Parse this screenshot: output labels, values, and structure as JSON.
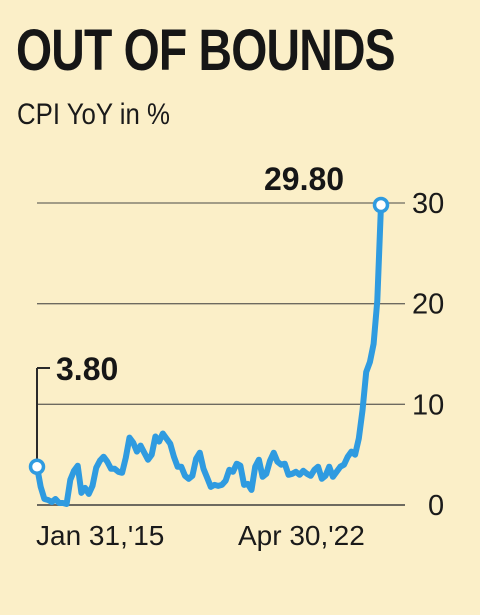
{
  "header": {
    "title": "OUT OF BOUNDS",
    "subtitle": "CPI YoY in %"
  },
  "colors": {
    "background": "#fbefc8",
    "line": "#2f9be0",
    "gridline": "#6d6a60",
    "text": "#1a1a1a"
  },
  "chart_data": {
    "type": "line",
    "title": "OUT OF BOUNDS",
    "subtitle": "CPI YoY in %",
    "xlabel": "",
    "ylabel": "",
    "ylim": [
      0,
      30
    ],
    "yticks": [
      0,
      10,
      20,
      30
    ],
    "x_start_label": "Jan 31,'15",
    "x_end_label": "Apr 30,'22",
    "grid": "horizontal",
    "series": [
      {
        "name": "",
        "color": "#2f9be0",
        "values": [
          3.8,
          1.8,
          0.6,
          0.5,
          0.3,
          0.6,
          0.2,
          0.2,
          0.1,
          2.5,
          3.4,
          3.9,
          1.2,
          1.7,
          1.1,
          1.9,
          3.7,
          4.4,
          4.8,
          4.3,
          3.6,
          3.6,
          3.3,
          3.2,
          4.7,
          6.7,
          6.2,
          5.3,
          5.9,
          5.2,
          4.5,
          5.0,
          6.8,
          6.3,
          7.1,
          6.6,
          6.1,
          4.8,
          3.8,
          3.8,
          2.9,
          2.6,
          2.9,
          4.6,
          5.2,
          3.6,
          2.7,
          1.8,
          2.0,
          1.9,
          2.0,
          2.4,
          3.5,
          3.3,
          4.1,
          3.9,
          2.0,
          2.1,
          1.5,
          3.8,
          4.5,
          2.8,
          3.1,
          4.4,
          5.2,
          4.3,
          4.0,
          4.1,
          3.0,
          3.1,
          3.3,
          3.0,
          3.4,
          3.1,
          2.9,
          3.5,
          3.8,
          2.6,
          2.9,
          3.8,
          2.8,
          3.3,
          3.8,
          4.0,
          4.8,
          5.3,
          5.0,
          6.6,
          9.4,
          13.2,
          14.2,
          16.0,
          20.3,
          29.8
        ]
      }
    ],
    "annotations": [
      {
        "label": "3.80",
        "value": 3.8,
        "at": "start"
      },
      {
        "label": "29.80",
        "value": 29.8,
        "at": "end"
      }
    ]
  }
}
